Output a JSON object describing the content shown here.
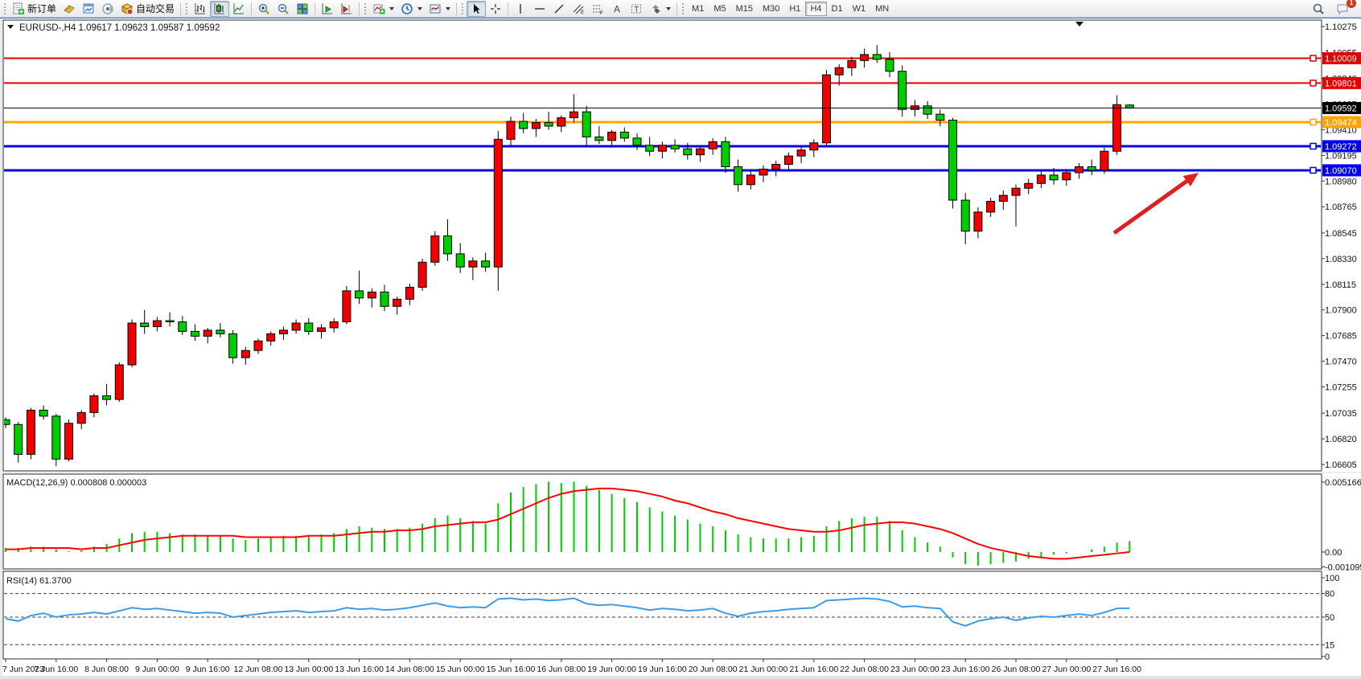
{
  "toolbar": {
    "new_order": "新订单",
    "autotrading": "自动交易",
    "timeframes": [
      "M1",
      "M5",
      "M15",
      "M30",
      "H1",
      "H4",
      "D1",
      "W1",
      "MN"
    ],
    "active_timeframe": "H4",
    "notification_badge": "1"
  },
  "chart_data": {
    "type": "candlestick",
    "symbol": "EURUSD-",
    "timeframe": "H4",
    "symbol_period_text": "EURUSD-,H4",
    "ohlc_text": "1.09617 1.09623 1.09587 1.09592",
    "bull_color": "#f20000",
    "bear_color": "#00cc00",
    "price_axis_ticks": [
      "1.10275",
      "1.10055",
      "1.09840",
      "1.09625",
      "1.09410",
      "1.09195",
      "1.08980",
      "1.08765",
      "1.08545",
      "1.08330",
      "1.08115",
      "1.07900",
      "1.07685",
      "1.07470",
      "1.07255",
      "1.07035",
      "1.06820",
      "1.06605"
    ],
    "price_axis_range": {
      "top": 1.10275,
      "bottom": 1.06605
    },
    "x_axis_labels": [
      "7 Jun 2023",
      "7 Jun 16:00",
      "8 Jun 08:00",
      "9 Jun 00:00",
      "9 Jun 16:00",
      "12 Jun 08:00",
      "13 Jun 00:00",
      "13 Jun 16:00",
      "14 Jun 08:00",
      "15 Jun 00:00",
      "15 Jun 16:00",
      "16 Jun 08:00",
      "19 Jun 00:00",
      "19 Jun 16:00",
      "20 Jun 08:00",
      "21 Jun 00:00",
      "21 Jun 16:00",
      "22 Jun 08:00",
      "23 Jun 00:00",
      "23 Jun 16:00",
      "26 Jun 08:00",
      "27 Jun 00:00",
      "27 Jun 16:00"
    ],
    "bars_per_label": 4,
    "horizontal_lines": [
      {
        "price": 1.10009,
        "label": "1.10009",
        "color": "#e30000",
        "width": 2
      },
      {
        "price": 1.09801,
        "label": "1.09801",
        "color": "#e30000",
        "width": 2
      },
      {
        "price": 1.09474,
        "label": "1.09474",
        "color": "#ffa500",
        "width": 3
      },
      {
        "price": 1.09272,
        "label": "1.09272",
        "color": "#0000ee",
        "width": 3
      },
      {
        "price": 1.0907,
        "label": "1.09070",
        "color": "#0000ee",
        "width": 3
      }
    ],
    "current_price": {
      "price": 1.09592,
      "label": "1.09592",
      "color": "#000000"
    },
    "candles": [
      [
        1.0698,
        1.07,
        1.0691,
        1.0694
      ],
      [
        1.0694,
        1.0696,
        1.0662,
        1.0669
      ],
      [
        1.0669,
        1.0708,
        1.0665,
        1.0706
      ],
      [
        1.0706,
        1.071,
        1.0698,
        1.0701
      ],
      [
        1.0701,
        1.0703,
        1.0659,
        1.0665
      ],
      [
        1.0665,
        1.0698,
        1.0663,
        1.0695
      ],
      [
        1.0695,
        1.0706,
        1.069,
        1.0704
      ],
      [
        1.0704,
        1.072,
        1.07,
        1.0718
      ],
      [
        1.0718,
        1.0728,
        1.071,
        1.0715
      ],
      [
        1.0715,
        1.0746,
        1.0713,
        1.0744
      ],
      [
        1.0744,
        1.0782,
        1.0742,
        1.0779
      ],
      [
        1.0779,
        1.079,
        1.077,
        1.0776
      ],
      [
        1.0776,
        1.0784,
        1.0772,
        1.0781
      ],
      [
        1.0781,
        1.0788,
        1.0776,
        1.078
      ],
      [
        1.078,
        1.0785,
        1.0769,
        1.0772
      ],
      [
        1.0772,
        1.0778,
        1.0764,
        1.0768
      ],
      [
        1.0768,
        1.0775,
        1.0762,
        1.0773
      ],
      [
        1.0773,
        1.0779,
        1.0767,
        1.077
      ],
      [
        1.077,
        1.0773,
        1.0745,
        1.075
      ],
      [
        1.075,
        1.0759,
        1.0744,
        1.0756
      ],
      [
        1.0756,
        1.0766,
        1.0753,
        1.0764
      ],
      [
        1.0764,
        1.0772,
        1.076,
        1.077
      ],
      [
        1.077,
        1.0776,
        1.0765,
        1.0773
      ],
      [
        1.0773,
        1.0782,
        1.077,
        1.0779
      ],
      [
        1.0779,
        1.0783,
        1.0769,
        1.0772
      ],
      [
        1.0772,
        1.0778,
        1.0766,
        1.0775
      ],
      [
        1.0775,
        1.0783,
        1.0771,
        1.078
      ],
      [
        1.078,
        1.081,
        1.0778,
        1.0806
      ],
      [
        1.0806,
        1.0823,
        1.0795,
        1.08
      ],
      [
        1.08,
        1.0808,
        1.0792,
        1.0805
      ],
      [
        1.0805,
        1.0811,
        1.0789,
        1.0793
      ],
      [
        1.0793,
        1.0801,
        1.0786,
        1.0799
      ],
      [
        1.0799,
        1.0812,
        1.0794,
        1.0809
      ],
      [
        1.0809,
        1.0833,
        1.0806,
        1.083
      ],
      [
        1.083,
        1.0856,
        1.0827,
        1.0852
      ],
      [
        1.0852,
        1.0866,
        1.0831,
        1.0837
      ],
      [
        1.0837,
        1.0846,
        1.0821,
        1.0826
      ],
      [
        1.0826,
        1.0834,
        1.0815,
        1.0831
      ],
      [
        1.0831,
        1.0838,
        1.0822,
        1.0826
      ],
      [
        1.0826,
        1.094,
        1.0806,
        1.0933
      ],
      [
        1.0933,
        1.0952,
        1.0928,
        1.0948
      ],
      [
        1.0948,
        1.0955,
        1.0938,
        1.0942
      ],
      [
        1.0942,
        1.095,
        1.0935,
        1.0947
      ],
      [
        1.0947,
        1.0956,
        1.0941,
        1.0944
      ],
      [
        1.0944,
        1.0953,
        1.0939,
        1.0951
      ],
      [
        1.0951,
        1.0971,
        1.0947,
        1.0956
      ],
      [
        1.0956,
        1.0961,
        1.0927,
        1.0935
      ],
      [
        1.0935,
        1.0944,
        1.0929,
        1.0932
      ],
      [
        1.0932,
        1.0941,
        1.0927,
        1.0939
      ],
      [
        1.0939,
        1.0943,
        1.0931,
        1.0934
      ],
      [
        1.0934,
        1.0938,
        1.0924,
        1.0928
      ],
      [
        1.0928,
        1.0935,
        1.0919,
        1.0923
      ],
      [
        1.0923,
        1.0931,
        1.0917,
        1.0928
      ],
      [
        1.0928,
        1.0933,
        1.0922,
        1.0925
      ],
      [
        1.0925,
        1.093,
        1.0916,
        1.092
      ],
      [
        1.092,
        1.0928,
        1.0914,
        1.0925
      ],
      [
        1.0925,
        1.0934,
        1.092,
        1.0931
      ],
      [
        1.0931,
        1.0935,
        1.0905,
        1.091
      ],
      [
        1.091,
        1.0916,
        1.0889,
        1.0895
      ],
      [
        1.0895,
        1.0907,
        1.0891,
        1.0903
      ],
      [
        1.0903,
        1.0911,
        1.0897,
        1.0908
      ],
      [
        1.0908,
        1.0915,
        1.0902,
        1.0912
      ],
      [
        1.0912,
        1.0922,
        1.0907,
        1.0919
      ],
      [
        1.0919,
        1.0927,
        1.0913,
        1.0924
      ],
      [
        1.0924,
        1.0933,
        1.0918,
        1.093
      ],
      [
        1.093,
        1.0991,
        1.0928,
        1.0987
      ],
      [
        1.0987,
        1.0996,
        1.0978,
        1.0993
      ],
      [
        1.0993,
        1.1002,
        1.0986,
        1.0999
      ],
      [
        1.0999,
        1.1009,
        1.0993,
        1.1004
      ],
      [
        1.1004,
        1.1012,
        1.0997,
        1.1
      ],
      [
        1.1,
        1.1006,
        1.0985,
        1.099
      ],
      [
        1.099,
        1.0995,
        1.0952,
        1.0958
      ],
      [
        1.0958,
        1.0966,
        1.0952,
        1.0961
      ],
      [
        1.0961,
        1.0965,
        1.095,
        1.0954
      ],
      [
        1.0954,
        1.0958,
        1.0944,
        1.0949
      ],
      [
        1.0949,
        1.0951,
        1.0875,
        1.0882
      ],
      [
        1.0882,
        1.0888,
        1.0845,
        1.0856
      ],
      [
        1.0856,
        1.0876,
        1.085,
        1.0872
      ],
      [
        1.0872,
        1.0884,
        1.0868,
        1.0881
      ],
      [
        1.0881,
        1.089,
        1.0874,
        1.0886
      ],
      [
        1.0886,
        1.0895,
        1.086,
        1.0892
      ],
      [
        1.0892,
        1.09,
        1.0887,
        1.0896
      ],
      [
        1.0896,
        1.0906,
        1.0892,
        1.0903
      ],
      [
        1.0903,
        1.0909,
        1.0895,
        1.0899
      ],
      [
        1.0899,
        1.0908,
        1.0894,
        1.0905
      ],
      [
        1.0905,
        1.0913,
        1.09,
        1.091
      ],
      [
        1.091,
        1.0916,
        1.0903,
        1.0907
      ],
      [
        1.0907,
        1.0926,
        1.0904,
        1.0923
      ],
      [
        1.0923,
        1.097,
        1.092,
        1.0962
      ],
      [
        1.09617,
        1.09623,
        1.09587,
        1.09592
      ]
    ],
    "macd": {
      "name": "MACD(12,26,9)",
      "values_text": "0.000808 0.000003",
      "axis_ticks": [
        "0.005166",
        "0.00",
        "-0.001095"
      ],
      "max": 0.005166,
      "min": -0.001095,
      "hist_color": "#00cc00",
      "signal_color": "#ff0000",
      "hist": [
        0.0003,
        0.0003,
        0.0004,
        0.0004,
        0.0002,
        5e-05,
        0.0001,
        0.0004,
        0.0006,
        0.001,
        0.0014,
        0.0015,
        0.0015,
        0.0014,
        0.0013,
        0.0013,
        0.0012,
        0.0012,
        0.001,
        0.0009,
        0.001,
        0.0011,
        0.0012,
        0.0012,
        0.0012,
        0.0013,
        0.0014,
        0.0017,
        0.0019,
        0.0018,
        0.0017,
        0.0017,
        0.0018,
        0.0021,
        0.0025,
        0.0027,
        0.0025,
        0.0023,
        0.0021,
        0.0036,
        0.0044,
        0.0048,
        0.005,
        0.0052,
        0.0051,
        0.0052,
        0.0049,
        0.0046,
        0.0043,
        0.004,
        0.0037,
        0.0033,
        0.003,
        0.0027,
        0.0024,
        0.0021,
        0.0019,
        0.0016,
        0.0013,
        0.0011,
        0.001,
        0.001,
        0.001,
        0.0011,
        0.0012,
        0.0019,
        0.0023,
        0.0025,
        0.0026,
        0.0026,
        0.0023,
        0.0016,
        0.0011,
        0.0007,
        0.0004,
        -0.0004,
        -0.0009,
        -0.001,
        -0.0009,
        -0.0008,
        -0.0007,
        -0.0005,
        -0.0004,
        -0.0002,
        -0.0001,
        0.0,
        0.0002,
        0.0004,
        0.0007,
        0.0008
      ],
      "signal": [
        0.0002,
        0.0002,
        0.0003,
        0.0003,
        0.0003,
        0.0003,
        0.0002,
        0.0003,
        0.0003,
        0.0005,
        0.0007,
        0.0009,
        0.001,
        0.0011,
        0.0012,
        0.0012,
        0.0012,
        0.0012,
        0.0012,
        0.0011,
        0.0011,
        0.0011,
        0.0011,
        0.0011,
        0.0012,
        0.0012,
        0.0012,
        0.0013,
        0.0014,
        0.0015,
        0.0015,
        0.0016,
        0.0016,
        0.0017,
        0.0019,
        0.002,
        0.0021,
        0.0022,
        0.0022,
        0.0024,
        0.0028,
        0.0032,
        0.0036,
        0.004,
        0.0043,
        0.0045,
        0.0046,
        0.0047,
        0.0047,
        0.0046,
        0.0045,
        0.0043,
        0.0041,
        0.0038,
        0.0036,
        0.0033,
        0.003,
        0.0028,
        0.0025,
        0.0023,
        0.0021,
        0.0019,
        0.0017,
        0.0016,
        0.0015,
        0.0015,
        0.0016,
        0.0018,
        0.002,
        0.0021,
        0.0022,
        0.0022,
        0.0021,
        0.0019,
        0.0017,
        0.0014,
        0.001,
        0.0006,
        0.0003,
        0.0001,
        -0.0001,
        -0.0003,
        -0.0004,
        -0.0005,
        -0.0005,
        -0.0004,
        -0.0003,
        -0.0002,
        -0.0001,
        3e-06
      ]
    },
    "rsi": {
      "name": "RSI(14)",
      "value_text": "61.3700",
      "axis_ticks": [
        "100",
        "80",
        "50",
        "15",
        "0"
      ],
      "levels": [
        80,
        50,
        15
      ],
      "color": "#3d9bea",
      "values": [
        48,
        45,
        52,
        55,
        50,
        53,
        54,
        56,
        54,
        58,
        62,
        60,
        61,
        59,
        57,
        55,
        56,
        55,
        50,
        52,
        54,
        56,
        57,
        58,
        56,
        57,
        58,
        62,
        60,
        61,
        59,
        60,
        62,
        65,
        68,
        64,
        62,
        63,
        62,
        73,
        74,
        72,
        73,
        71,
        72,
        74,
        67,
        65,
        66,
        64,
        62,
        59,
        61,
        60,
        58,
        59,
        61,
        55,
        51,
        55,
        57,
        58,
        60,
        61,
        62,
        71,
        72,
        73,
        74,
        73,
        70,
        63,
        64,
        62,
        61,
        44,
        39,
        45,
        48,
        50,
        46,
        49,
        51,
        50,
        52,
        54,
        52,
        56,
        61,
        61.37
      ]
    },
    "annotation_arrow": {
      "from": [
        1385,
        290
      ],
      "to": [
        1490,
        215
      ],
      "color": "#e02020"
    }
  }
}
